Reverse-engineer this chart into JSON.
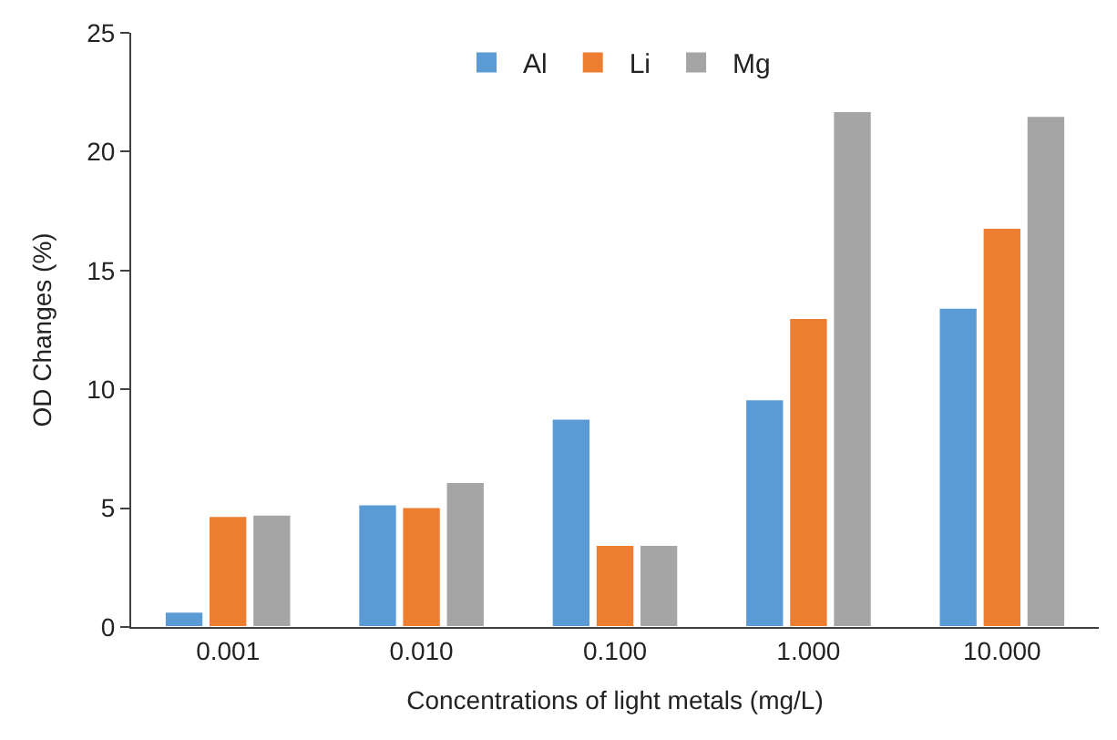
{
  "chart_data": {
    "type": "bar",
    "xlabel": "Concentrations of light metals (mg/L)",
    "ylabel": "OD Changes (%)",
    "categories": [
      "0.001",
      "0.010",
      "0.100",
      "1.000",
      "10.000"
    ],
    "series": [
      {
        "name": "Al",
        "color": "#5b9bd5",
        "values": [
          0.64,
          5.16,
          8.76,
          9.58,
          13.43
        ]
      },
      {
        "name": "Li",
        "color": "#ed7d31",
        "values": [
          4.67,
          5.04,
          3.45,
          13.0,
          16.79
        ]
      },
      {
        "name": "Mg",
        "color": "#a5a5a5",
        "values": [
          4.73,
          6.1,
          3.45,
          21.7,
          21.5
        ]
      }
    ],
    "ylim": [
      0,
      25
    ],
    "yticks": [
      0,
      5,
      10,
      15,
      20,
      25
    ],
    "legend": "top"
  }
}
